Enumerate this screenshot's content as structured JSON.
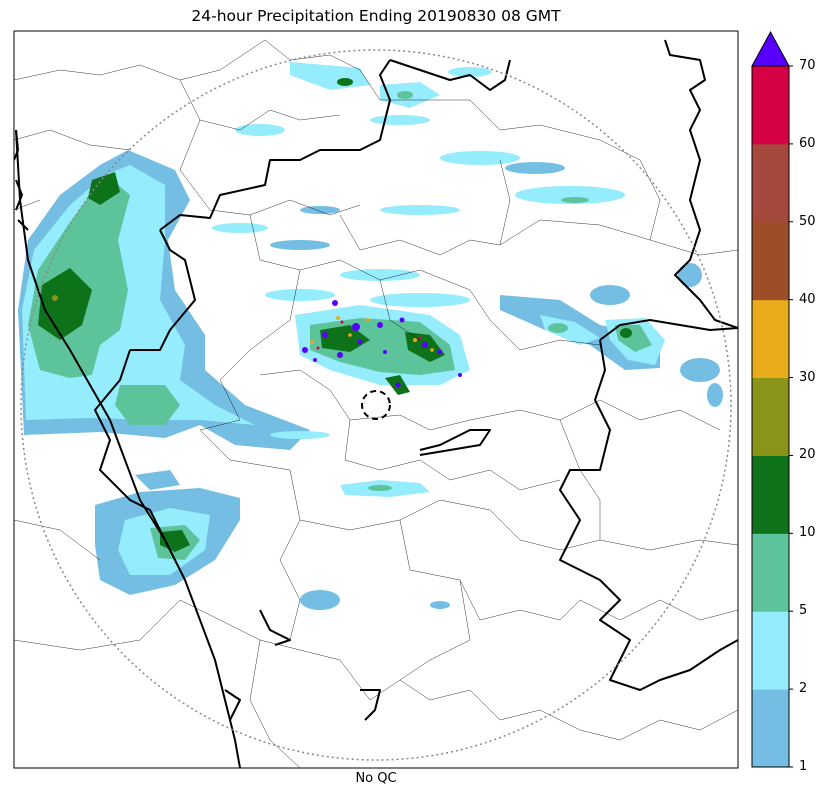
{
  "title": "24-hour Precipitation Ending 20190830 08 GMT",
  "subtitle": "No QC",
  "colorbar": {
    "levels": [
      "1",
      "2",
      "5",
      "10",
      "20",
      "30",
      "40",
      "50",
      "60",
      "70"
    ],
    "colors": [
      "#74bde3",
      "#94ecfd",
      "#5cc39b",
      "#0e721a",
      "#8a9419",
      "#e8ab19",
      "#9b4e27",
      "#a5483e",
      "#d50246"
    ],
    "extend_color": "#5800ff",
    "extend": "max"
  }
}
